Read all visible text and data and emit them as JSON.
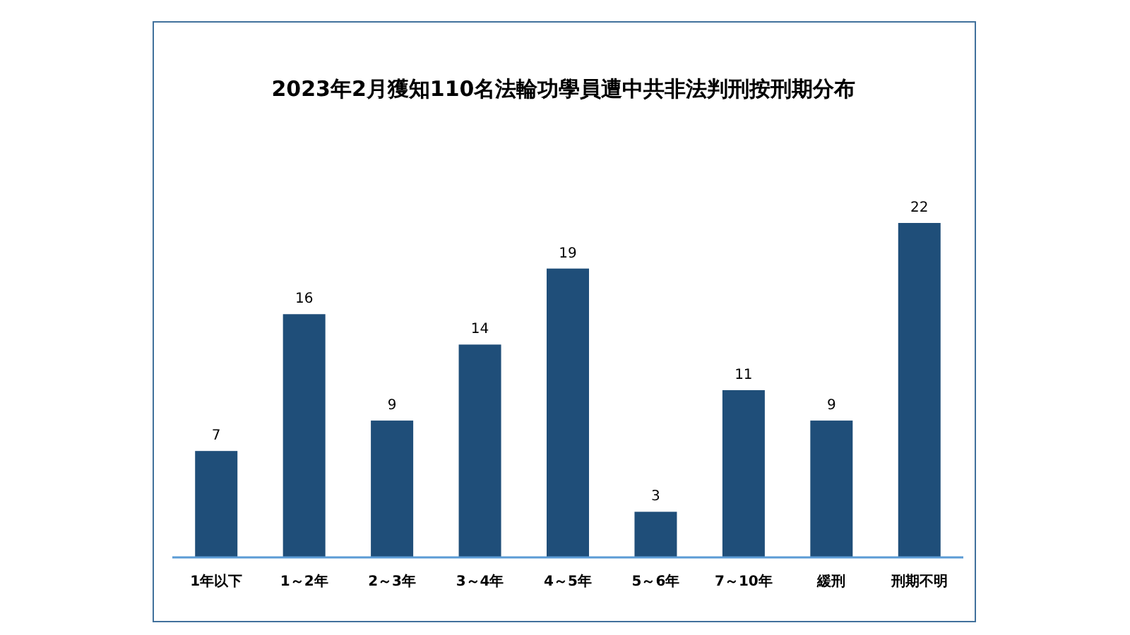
{
  "chart_data": {
    "type": "bar",
    "title": "2023年2月獲知110名法輪功學員遭中共非法判刑按刑期分布",
    "categories": [
      "1年以下",
      "1～2年",
      "2～3年",
      "3～4年",
      "4～5年",
      "5～6年",
      "7～10年",
      "緩刑",
      "刑期不明"
    ],
    "values": [
      7,
      16,
      9,
      14,
      19,
      3,
      11,
      9,
      22
    ],
    "color": "#1f4e79",
    "data_labels": true
  }
}
